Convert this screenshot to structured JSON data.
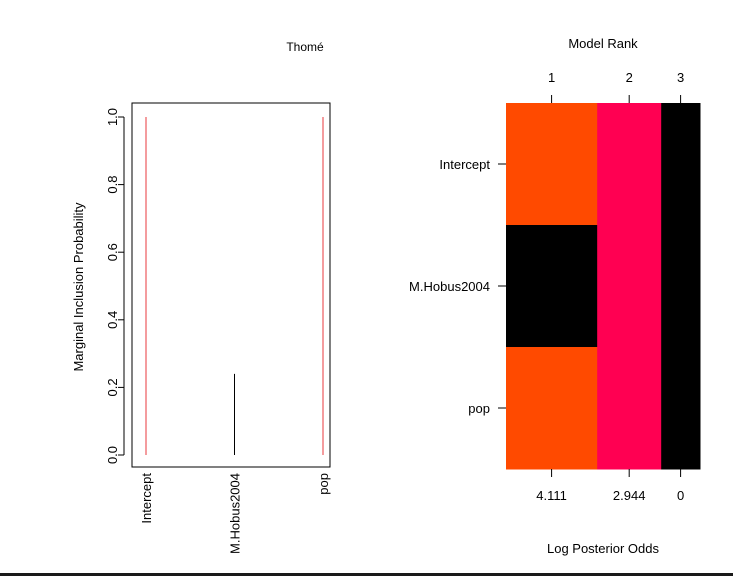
{
  "chart_data": [
    {
      "type": "bar",
      "title": "Thomé",
      "ylabel": "Marginal Inclusion Probability",
      "ylim": [
        0,
        1
      ],
      "yticks": [
        "0.0",
        "0.2",
        "0.4",
        "0.6",
        "0.8",
        "1.0"
      ],
      "categories": [
        "Intercept",
        "M.Hobus2004",
        "pop"
      ],
      "values": [
        1.0,
        0.24,
        1.0
      ],
      "bar_colors": [
        "#e8383d",
        "#000000",
        "#e8383d"
      ]
    },
    {
      "type": "heatmap",
      "title": "Model Rank",
      "xlabel": "Log Posterior Odds",
      "model_ranks": [
        "1",
        "2",
        "3"
      ],
      "log_posterior_odds": [
        "4.111",
        "2.944",
        "0"
      ],
      "rows": [
        "Intercept",
        "M.Hobus2004",
        "pop"
      ],
      "column_weights": [
        0.47,
        0.33,
        0.2
      ],
      "inclusion": [
        [
          1,
          1,
          0
        ],
        [
          0,
          1,
          0
        ],
        [
          1,
          1,
          0
        ]
      ],
      "column_colors": [
        "#ff4a00",
        "#ff0052"
      ],
      "excluded_color": "#000000"
    }
  ]
}
